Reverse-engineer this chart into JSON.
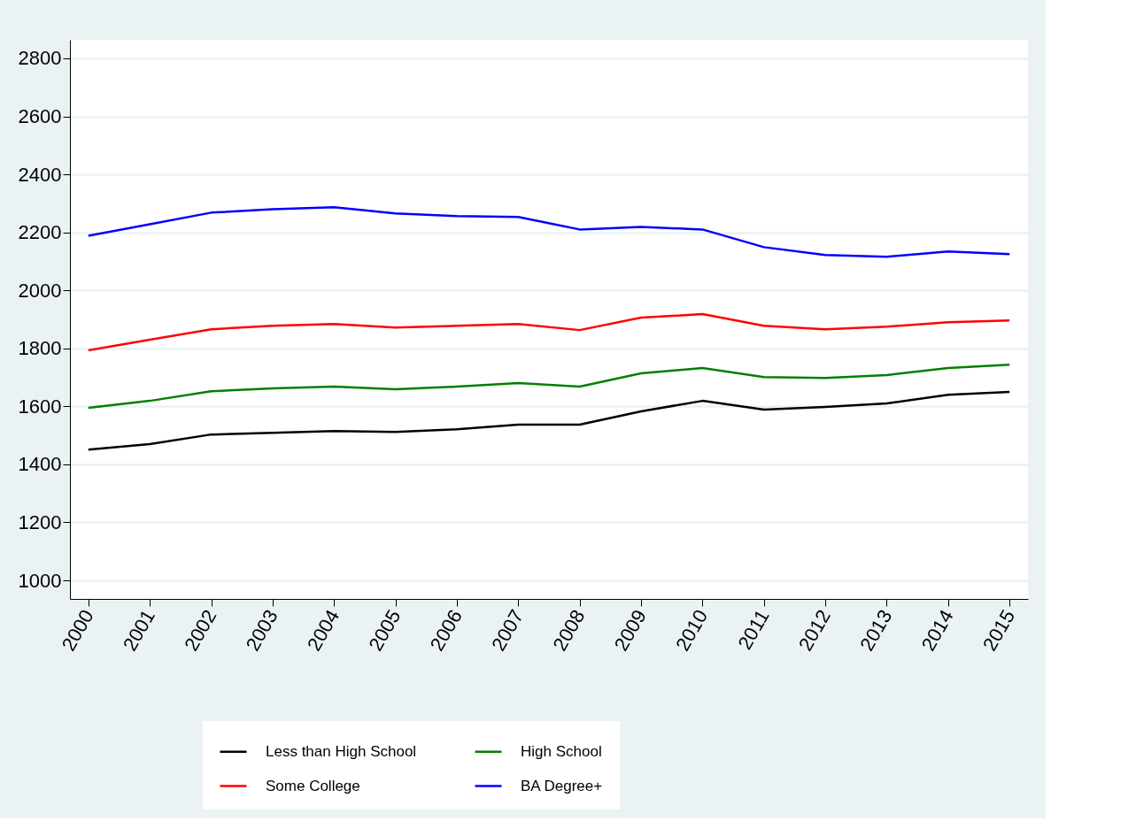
{
  "chart_data": {
    "type": "line",
    "categories": [
      "2000",
      "2001",
      "2002",
      "2003",
      "2004",
      "2005",
      "2006",
      "2007",
      "2008",
      "2009",
      "2010",
      "2011",
      "2012",
      "2013",
      "2014",
      "2015"
    ],
    "series": [
      {
        "name": "Less than High School",
        "color": "#000000",
        "values": [
          1451,
          1470,
          1503,
          1509,
          1515,
          1512,
          1521,
          1537,
          1537,
          1583,
          1619,
          1589,
          1598,
          1610,
          1640,
          1650
        ]
      },
      {
        "name": "High School",
        "color": "#008000",
        "values": [
          1595,
          1619,
          1652,
          1662,
          1668,
          1659,
          1668,
          1680,
          1668,
          1714,
          1732,
          1701,
          1698,
          1708,
          1732,
          1744
        ]
      },
      {
        "name": "Some College",
        "color": "#ff0000",
        "values": [
          1793,
          1830,
          1866,
          1878,
          1884,
          1872,
          1878,
          1884,
          1863,
          1906,
          1918,
          1878,
          1866,
          1875,
          1890,
          1896
        ]
      },
      {
        "name": "BA Degree+",
        "color": "#0000ff",
        "values": [
          2188,
          2228,
          2268,
          2280,
          2287,
          2265,
          2256,
          2253,
          2210,
          2219,
          2210,
          2149,
          2122,
          2116,
          2134,
          2125
        ]
      }
    ],
    "ylim": [
      936,
      2864
    ],
    "yticks": [
      1000,
      1200,
      1400,
      1600,
      1800,
      2000,
      2200,
      2400,
      2600,
      2800
    ],
    "grid": "y",
    "legend": "bottom",
    "marker": "none",
    "line_style": "solid"
  }
}
